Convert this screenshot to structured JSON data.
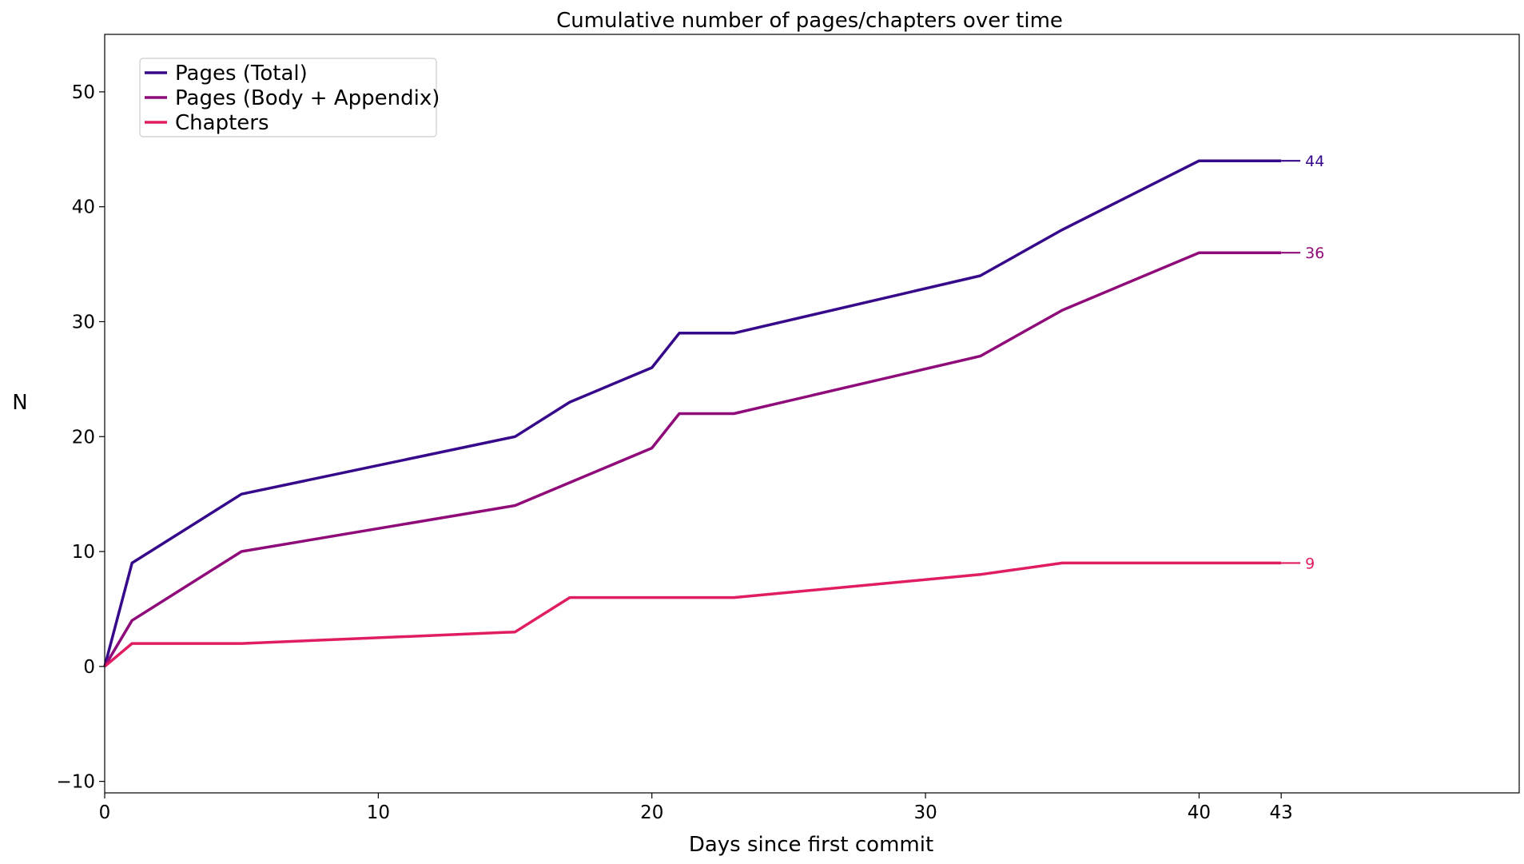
{
  "chart_data": {
    "type": "line",
    "title": "Cumulative number of pages/chapters over time",
    "xlabel": "Days since first commit",
    "ylabel": "N",
    "xlim": [
      0,
      51.7
    ],
    "ylim": [
      -11,
      55
    ],
    "xticks": [
      0,
      10,
      20,
      30,
      40,
      43
    ],
    "xtick_labels": [
      "0",
      "10",
      "20",
      "30",
      "40",
      "43"
    ],
    "yticks": [
      -10,
      0,
      10,
      20,
      30,
      40,
      50
    ],
    "ytick_labels": [
      "−10",
      "0",
      "10",
      "20",
      "30",
      "40",
      "50"
    ],
    "grid": false,
    "legend_position": "top-left",
    "series": [
      {
        "name": "Pages (Total)",
        "color": "#36088a",
        "x": [
          0,
          1,
          5,
          15,
          17,
          20,
          21,
          23,
          32,
          35,
          40,
          43
        ],
        "values": [
          0,
          9,
          15,
          20,
          23,
          26,
          29,
          29,
          34,
          38,
          44,
          44
        ],
        "end_label": "44"
      },
      {
        "name": "Pages (Body + Appendix)",
        "color": "#8e0b79",
        "x": [
          0,
          1,
          5,
          15,
          17,
          20,
          21,
          23,
          32,
          35,
          40,
          43
        ],
        "values": [
          0,
          4,
          10,
          14,
          16,
          19,
          22,
          22,
          27,
          31,
          36,
          36
        ],
        "end_label": "36"
      },
      {
        "name": "Chapters",
        "color": "#e01d62",
        "x": [
          0,
          1,
          5,
          15,
          17,
          20,
          21,
          23,
          32,
          35,
          40,
          43
        ],
        "values": [
          0,
          2,
          2,
          3,
          6,
          6,
          6,
          6,
          8,
          9,
          9,
          9
        ],
        "end_label": "9"
      }
    ]
  }
}
